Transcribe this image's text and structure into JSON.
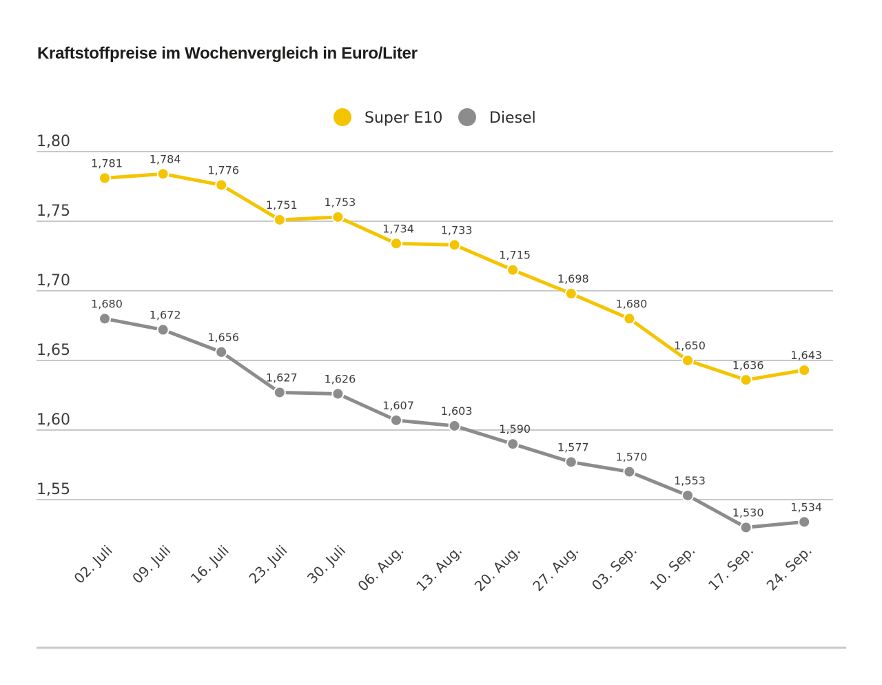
{
  "chart_data": {
    "type": "line",
    "title": "Kraftstoffpreise im Wochenvergleich in Euro/Liter",
    "xlabel": "",
    "ylabel": "",
    "categories": [
      "02. Juli",
      "09. Juli",
      "16. Juli",
      "23. Juli",
      "30. Juli",
      "06. Aug.",
      "13. Aug.",
      "20. Aug.",
      "27. Aug.",
      "03. Sep.",
      "10. Sep.",
      "17. Sep.",
      "24. Sep."
    ],
    "series": [
      {
        "name": "Super E10",
        "color": "#f5c400",
        "values": [
          1.781,
          1.784,
          1.776,
          1.751,
          1.753,
          1.734,
          1.733,
          1.715,
          1.698,
          1.68,
          1.65,
          1.636,
          1.643
        ],
        "labels": [
          "1,781",
          "1,784",
          "1,776",
          "1,751",
          "1,753",
          "1,734",
          "1,733",
          "1,715",
          "1,698",
          "1,680",
          "1,650",
          "1,636",
          "1,643"
        ]
      },
      {
        "name": "Diesel",
        "color": "#8c8c8c",
        "values": [
          1.68,
          1.672,
          1.656,
          1.627,
          1.626,
          1.607,
          1.603,
          1.59,
          1.577,
          1.57,
          1.553,
          1.53,
          1.534
        ],
        "labels": [
          "1,680",
          "1,672",
          "1,656",
          "1,627",
          "1,626",
          "1,607",
          "1,603",
          "1,590",
          "1,577",
          "1,570",
          "1,553",
          "1,530",
          "1,534"
        ]
      }
    ],
    "yticks": [
      1.8,
      1.75,
      1.7,
      1.65,
      1.6,
      1.55
    ],
    "ytick_labels": [
      "1,80",
      "1,75",
      "1,70",
      "1,65",
      "1,60",
      "1,55"
    ],
    "ylim": [
      1.55,
      1.8
    ],
    "grid": true,
    "legend": "top-center",
    "gridline_color": "#c8c8c8",
    "rule_color": "#c8c8c8"
  }
}
